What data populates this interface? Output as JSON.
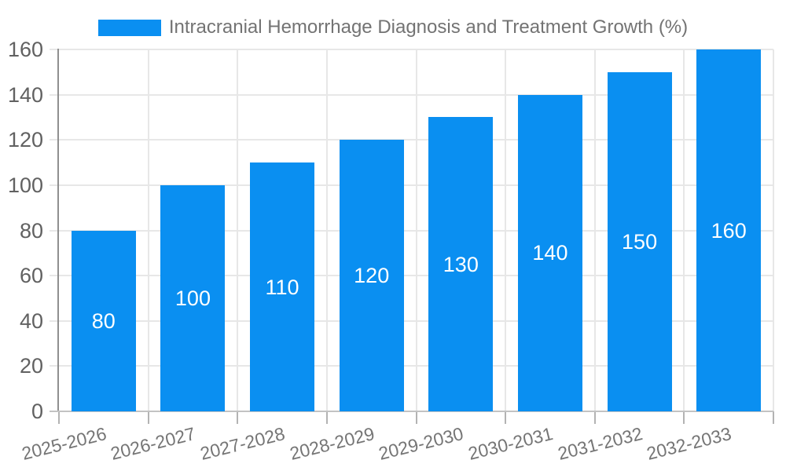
{
  "chart_data": {
    "type": "bar",
    "title": "Intracranial Hemorrhage Diagnosis and Treatment Growth (%)",
    "categories": [
      "2025-2026",
      "2026-2027",
      "2027-2028",
      "2028-2029",
      "2029-2030",
      "2030-2031",
      "2031-2032",
      "2032-2033"
    ],
    "series": [
      {
        "name": "Intracranial Hemorrhage Diagnosis and Treatment Growth (%)",
        "values": [
          80,
          100,
          110,
          120,
          130,
          140,
          150,
          160
        ]
      }
    ],
    "value_labels": [
      "80",
      "100",
      "110",
      "120",
      "130",
      "140",
      "150",
      "160"
    ],
    "yticks": [
      0,
      20,
      40,
      60,
      80,
      100,
      120,
      140,
      160
    ],
    "ylim": [
      0,
      160
    ],
    "xlabel": "",
    "ylabel": "",
    "grid": true,
    "legend_position": "top-center",
    "bar_color": "#0a8ff1",
    "value_label_color": "#ffffff"
  }
}
